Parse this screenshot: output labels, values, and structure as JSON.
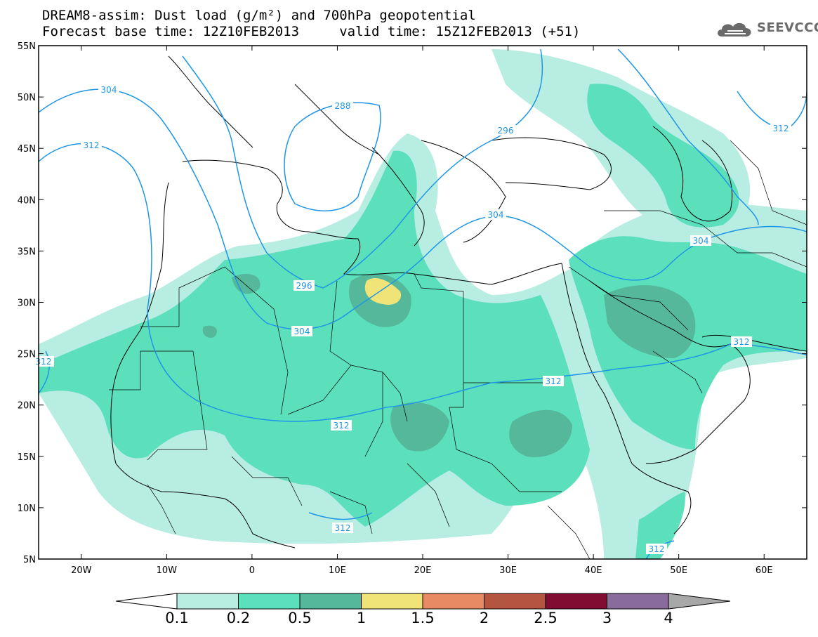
{
  "title": {
    "line1": "DREAM8-assim: Dust load (g/m²) and 700hPa geopotential",
    "line2": "Forecast base time: 12Z10FEB2013     valid time: 15Z12FEB2013 (+51)"
  },
  "logo": {
    "text": "SEEVCCC",
    "icon": "cloud-icon"
  },
  "map": {
    "lon_range": [
      -25,
      65
    ],
    "lat_range": [
      5,
      55
    ],
    "lat_ticks": [
      "55N",
      "50N",
      "45N",
      "40N",
      "35N",
      "30N",
      "25N",
      "20N",
      "15N",
      "10N",
      "5N"
    ],
    "lon_ticks": [
      "20W",
      "10W",
      "0",
      "10E",
      "20E",
      "30E",
      "40E",
      "50E",
      "60E"
    ],
    "contour_labels": [
      "304",
      "312",
      "288",
      "296",
      "312",
      "304",
      "304",
      "296",
      "304",
      "312",
      "312",
      "312",
      "312",
      "312",
      "312"
    ]
  },
  "colorbar": {
    "labels": [
      "0.1",
      "0.2",
      "0.5",
      "1",
      "1.5",
      "2",
      "2.5",
      "3",
      "4"
    ],
    "colors": [
      "#ffffff",
      "#b8ede2",
      "#5ce0bb",
      "#55b89b",
      "#f0e478",
      "#e88b65",
      "#b45542",
      "#820d32",
      "#8a6b9e",
      "#a8a8a8"
    ]
  },
  "colors": {
    "contour": "#1e96e6",
    "dust_light": "#b8ede2",
    "dust_medium": "#5ce0bb",
    "dust_dark": "#55b89b",
    "dust_yellow": "#f0e478"
  }
}
